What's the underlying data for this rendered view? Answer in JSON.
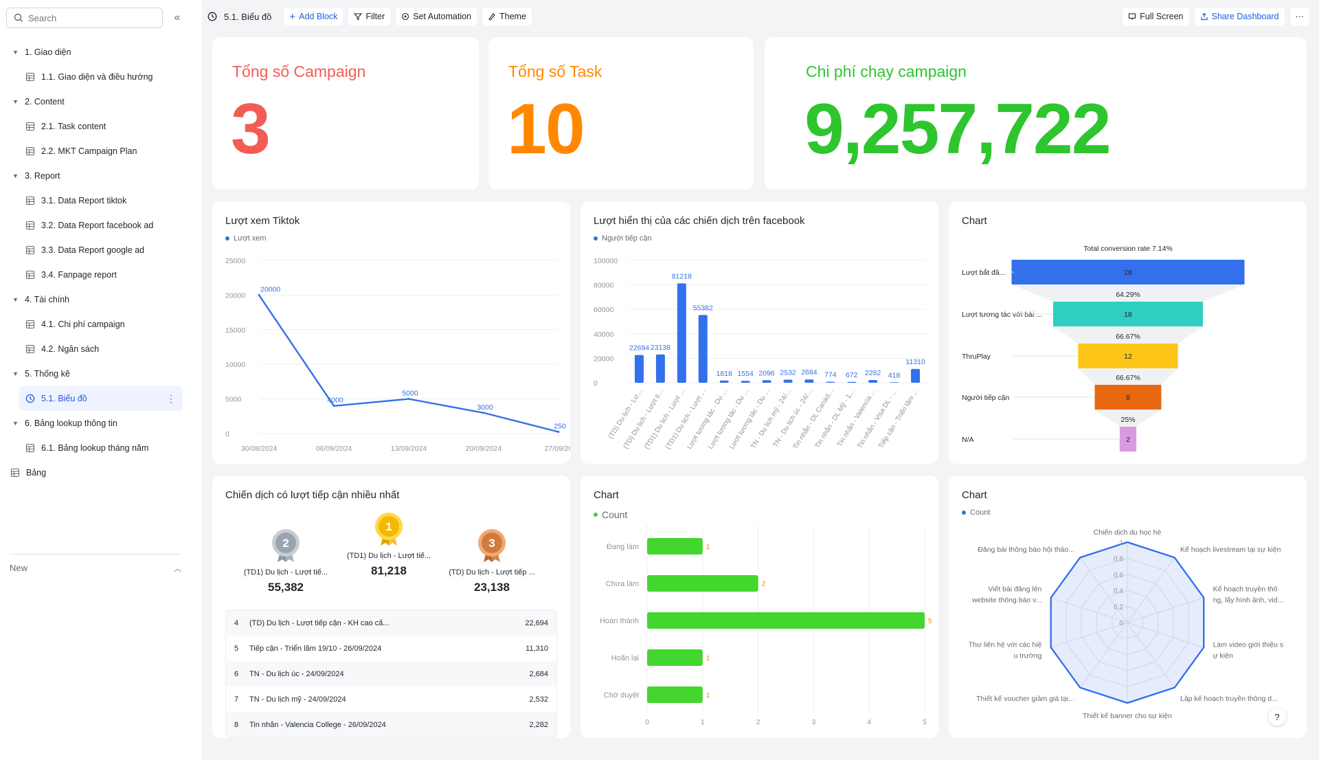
{
  "search": {
    "placeholder": "Search"
  },
  "sidebar": {
    "tree": [
      {
        "kind": "group",
        "label": "1. Giao diện"
      },
      {
        "kind": "child",
        "label": "1.1. Giao diện và điều hướng"
      },
      {
        "kind": "group",
        "label": "2. Content"
      },
      {
        "kind": "child",
        "label": "2.1. Task content"
      },
      {
        "kind": "child",
        "label": "2.2. MKT Campaign Plan"
      },
      {
        "kind": "group",
        "label": "3. Report"
      },
      {
        "kind": "child",
        "label": "3.1. Data Report tiktok"
      },
      {
        "kind": "child",
        "label": "3.2. Data Report facebook ad"
      },
      {
        "kind": "child",
        "label": "3.3. Data Report google ad"
      },
      {
        "kind": "child",
        "label": "3.4. Fanpage report"
      },
      {
        "kind": "group",
        "label": "4. Tài chính"
      },
      {
        "kind": "child",
        "label": "4.1. Chi phí campaign"
      },
      {
        "kind": "child",
        "label": "4.2. Ngân sách"
      },
      {
        "kind": "group",
        "label": "5. Thống kê"
      },
      {
        "kind": "active",
        "label": "5.1. Biểu đồ"
      },
      {
        "kind": "group",
        "label": "6. Bảng lookup thông tin"
      },
      {
        "kind": "child",
        "label": "6.1. Bảng lookup tháng năm"
      },
      {
        "kind": "top",
        "label": "Bảng"
      }
    ],
    "new_label": "New"
  },
  "toolbar": {
    "title": "5.1. Biểu đồ",
    "add_block": "Add Block",
    "filter": "Filter",
    "set_automation": "Set Automation",
    "theme": "Theme",
    "full_screen": "Full Screen",
    "share_dashboard": "Share Dashboard",
    "more": "···"
  },
  "colors": {
    "accent": "#245bdb",
    "red": "#f25c54",
    "orange": "#ff8800",
    "green": "#2ec52e",
    "blue": "#3370eb"
  },
  "kpis": [
    {
      "label": "Tổng số Campaign",
      "value": "3",
      "color": "#f25c54"
    },
    {
      "label": "Tổng số Task",
      "value": "10",
      "color": "#ff8800"
    },
    {
      "label": "Chi phí chạy campaign",
      "value": "9,257,722",
      "color": "#2ec52e"
    }
  ],
  "tiktok": {
    "title": "Lượt xem Tiktok",
    "legend": "Lượt xem"
  },
  "facebook": {
    "title": "Lượt hiển thị của các chiến dịch trên facebook",
    "legend": "Người tiếp cận"
  },
  "funnel": {
    "title": "Chart",
    "conversion": "Total conversion rate 7.14%"
  },
  "ranking": {
    "title": "Chiến dịch có lượt tiếp cận nhiều nhất",
    "podium": [
      {
        "rank": "2",
        "name": "(TD1) Du lịch - Lượt tiế...",
        "value": "55,382"
      },
      {
        "rank": "1",
        "name": "(TD1) Du lịch - Lượt tiế...",
        "value": "81,218"
      },
      {
        "rank": "3",
        "name": "(TD) Du lịch - Lượt tiếp ...",
        "value": "23,138"
      }
    ],
    "rows": [
      {
        "n": "4",
        "label": "(TD) Du lịch - Lượt tiếp cận - KH cao cấ...",
        "value": "22,694"
      },
      {
        "n": "5",
        "label": "Tiếp cận - Triển lãm 19/10 - 26/09/2024",
        "value": "11,310"
      },
      {
        "n": "6",
        "label": "TN - Du lịch úc - 24/09/2024",
        "value": "2,684"
      },
      {
        "n": "7",
        "label": "TN - Du lịch mỹ - 24/09/2024",
        "value": "2,532"
      },
      {
        "n": "8",
        "label": "Tin nhắn - Valencia College - 26/09/2024",
        "value": "2,282"
      }
    ]
  },
  "status_chart": {
    "title": "Chart",
    "legend": "Count"
  },
  "radar_chart": {
    "title": "Chart",
    "legend": "Count"
  },
  "help": "?",
  "chart_data": [
    {
      "id": "tiktok",
      "type": "line",
      "title": "Lượt xem Tiktok",
      "x": [
        "30/08/2024",
        "06/09/2024",
        "13/09/2024",
        "20/09/2024",
        "27/09/20"
      ],
      "series": [
        {
          "name": "Lượt xem",
          "values": [
            20000,
            4000,
            5000,
            3000,
            250
          ]
        }
      ],
      "data_labels": [
        "20000",
        "4000",
        "5000",
        "3000",
        "250"
      ],
      "y_ticks": [
        "0",
        "5000",
        "10000",
        "15000",
        "20000",
        "25000"
      ],
      "ylim": [
        0,
        25000
      ],
      "color": "#3370eb"
    },
    {
      "id": "facebook",
      "type": "bar",
      "title": "Lượt hiển thị của các chiến dịch trên facebook",
      "categories": [
        "(TD) Du lịch - Lư...",
        "(TD) Du lịch - Lượt ti...",
        "(TD1) Du lịch - Lượt ...",
        "(TD1) Du lịch - Lượt ...",
        "Lượt tương tác - Du ...",
        "Lượt tương tác - Du ...",
        "Lượt tương tác - Du ...",
        "TN - Du lịch mỹ - 24/...",
        "TN - Du lịch úc - 24/...",
        "Tin nhắn - DL Canad...",
        "Tin nhắn - DL Mỹ - 1...",
        "Tin nhắn - Valencia ...",
        "Tin nhắn - Visa DL - ...",
        "Tiếp cận - Triển lãm ..."
      ],
      "series": [
        {
          "name": "Người tiếp cận",
          "values": [
            22694,
            23138,
            81218,
            55382,
            1818,
            1554,
            2096,
            2532,
            2684,
            774,
            672,
            2282,
            418,
            11310
          ]
        }
      ],
      "data_labels": [
        "22694",
        "23138",
        "81218",
        "55382",
        "1818",
        "1554",
        "2096",
        "2532",
        "2684",
        "774",
        "672",
        "2282",
        "418",
        "11310"
      ],
      "y_ticks": [
        "0",
        "20000",
        "40000",
        "60000",
        "80000",
        "100000"
      ],
      "ylim": [
        0,
        100000
      ],
      "color": "#3370eb"
    },
    {
      "id": "funnel",
      "type": "funnel",
      "title": "Chart",
      "categories": [
        "Lượt bắt đầ...",
        "Lượt tương tác với bài ...",
        "ThruPlay",
        "Người tiếp cận",
        "N/A"
      ],
      "values": [
        28,
        18,
        12,
        8,
        2
      ],
      "value_labels": [
        "28",
        "18",
        "12",
        "8",
        "2"
      ],
      "conversion_rates": [
        "64.29%",
        "66.67%",
        "66.67%",
        "25%"
      ],
      "colors": [
        "#3370eb",
        "#2ecfc2",
        "#fcc517",
        "#e8680f",
        "#d99ae0"
      ]
    },
    {
      "id": "status",
      "type": "bar",
      "orientation": "horizontal",
      "title": "Chart",
      "categories": [
        "Đang làm",
        "Chưa làm",
        "Hoàn thành",
        "Hoãn lại",
        "Chờ duyệt"
      ],
      "series": [
        {
          "name": "Count",
          "values": [
            1,
            2,
            5,
            1,
            1
          ]
        }
      ],
      "data_labels": [
        "1",
        "2",
        "5",
        "1",
        "1"
      ],
      "x_ticks": [
        "0",
        "1",
        "2",
        "3",
        "4",
        "5"
      ],
      "xlim": [
        0,
        5
      ],
      "color": "#43d62e"
    },
    {
      "id": "radar",
      "type": "radar",
      "title": "Chart",
      "axes": [
        [
          "Chiến dịch du học hè"
        ],
        [
          "Kế hoạch livestream tại sự kiện"
        ],
        [
          "Kế hoạch truyền thô",
          "ng, lấy hình ảnh, vid..."
        ],
        [
          "Làm video giới thiệu s",
          "ự kiện"
        ],
        [
          "Lập kế hoạch truyền thông d..."
        ],
        [
          "Thiết kế banner cho sự kiện"
        ],
        [
          "Thiết kế voucher giảm giá tại..."
        ],
        [
          "Thư liên hệ với các hiệ",
          "u trường"
        ],
        [
          "Viết bài đăng lên",
          "website thông báo v..."
        ],
        [
          "Đăng bài thông báo hội thảo..."
        ]
      ],
      "series": [
        {
          "name": "Count",
          "values": [
            1,
            1,
            1,
            1,
            1,
            1,
            1,
            1,
            1,
            1
          ]
        }
      ],
      "r_ticks": [
        "0",
        "0.2",
        "0.4",
        "0.6",
        "0.8",
        "1"
      ],
      "rlim": [
        0,
        1
      ],
      "color": "#3370eb"
    }
  ]
}
